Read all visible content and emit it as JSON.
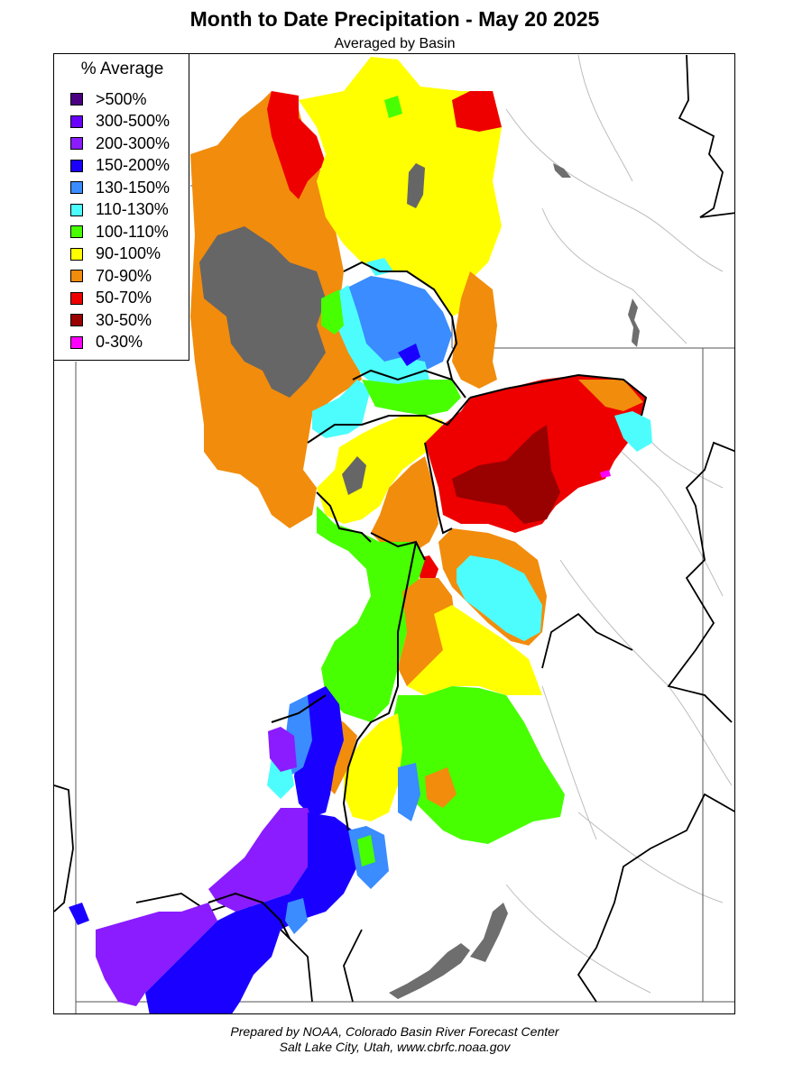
{
  "title": "Month to Date Precipitation - May 20 2025",
  "subtitle": "Averaged by Basin",
  "legend": {
    "title": "% Average",
    "items": [
      {
        "label": ">500%",
        "color": "#4b0082"
      },
      {
        "label": "300-500%",
        "color": "#6a00ff"
      },
      {
        "label": "200-300%",
        "color": "#8a1cff"
      },
      {
        "label": "150-200%",
        "color": "#1a00ff"
      },
      {
        "label": "130-150%",
        "color": "#3a8cff"
      },
      {
        "label": "110-130%",
        "color": "#4dfdfd"
      },
      {
        "label": "100-110%",
        "color": "#47ff00"
      },
      {
        "label": "90-100%",
        "color": "#ffff00"
      },
      {
        "label": "70-90%",
        "color": "#f28c0c"
      },
      {
        "label": "50-70%",
        "color": "#ee0000"
      },
      {
        "label": "30-50%",
        "color": "#990000"
      },
      {
        "label": "0-30%",
        "color": "#ff00ff"
      }
    ]
  },
  "no_data_color": "#666666",
  "footer": {
    "line1": "Prepared by NOAA, Colorado Basin River Forecast Center",
    "line2": "Salt Lake City, Utah, www.cbrfc.noaa.gov"
  }
}
